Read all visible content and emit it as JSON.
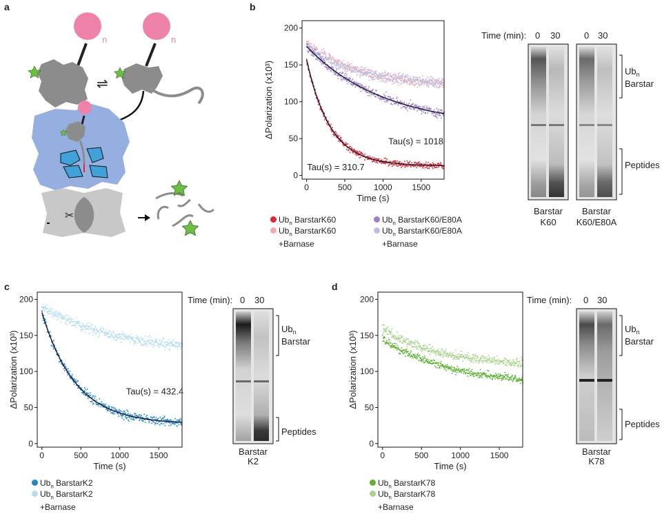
{
  "panel_labels": {
    "a": "a",
    "b": "b",
    "c": "c",
    "d": "d"
  },
  "schematic": {
    "subscript_n_1": "n",
    "subscript_n_2": "n",
    "equilibrium_symbol": "⇌",
    "scissors_symbol": "✂",
    "colors": {
      "ubiquitin": "#EE82A8",
      "substrate": "#8C8C8C",
      "regulatory": "#94AFE0",
      "core": "#C8C8C8",
      "star": "#6DBE45"
    }
  },
  "gel_common": {
    "time_label": "Time (min):",
    "lane_0": "0",
    "lane_30": "30",
    "ub_label": "Ub",
    "ub_sub": "n",
    "barstar_label": "Barstar",
    "peptides_label": "Peptides"
  },
  "gels": {
    "k60": {
      "line1": "Barstar",
      "line2": "K60"
    },
    "k60e80a": {
      "line1": "Barstar",
      "line2": "K60/E80A"
    },
    "k2": {
      "line1": "Barstar",
      "line2": "K2"
    },
    "k78": {
      "line1": "Barstar",
      "line2": "K78"
    }
  },
  "chart_data": [
    {
      "panel": "b",
      "type": "scatter",
      "xlabel": "Time (s)",
      "ylabel": "ΔPolarization (x10³)",
      "xlim": [
        -60,
        1800
      ],
      "ylim": [
        -5,
        210
      ],
      "xticks": [
        0,
        500,
        1000,
        1500
      ],
      "yticks": [
        0,
        50,
        100,
        150,
        200
      ],
      "series": [
        {
          "name": "Ubn BarstarK60 +Barnase",
          "legend_main": "Ub",
          "legend_sub": "n",
          "legend_rest": " BarstarK60",
          "legend_line2": "+Barnase",
          "color": "#F4A9AE",
          "start": 180,
          "end": 120,
          "tau": 700,
          "noise": 9
        },
        {
          "name": "Ubn BarstarK60/E80A +Barnase",
          "legend_main": "Ub",
          "legend_sub": "n",
          "legend_rest": " BarstarK60/E80A",
          "legend_line2": "+Barnase",
          "color": "#B7C2E8",
          "start": 176,
          "end": 122,
          "tau": 650,
          "noise": 9
        },
        {
          "name": "Ubn BarstarK60/E80A",
          "legend_main": "Ub",
          "legend_sub": "n",
          "legend_rest": " BarstarK60/E80A",
          "legend_line2": "",
          "color": "#9B80C7",
          "start": 175,
          "end": 65,
          "tau": 1018,
          "noise": 8,
          "fit": true
        },
        {
          "name": "Ubn BarstarK60",
          "legend_main": "Ub",
          "legend_sub": "n",
          "legend_rest": " BarstarK60",
          "legend_line2": "",
          "color": "#E3262F",
          "start": 157,
          "end": 13,
          "tau": 310.7,
          "noise": 6,
          "fit": true
        }
      ],
      "annotations": [
        {
          "text": "Tau(s) = 1018",
          "x": 1070,
          "y": 42
        },
        {
          "text": "Tau(s) = 310.7",
          "x": 5,
          "y": 7
        }
      ],
      "legend_order": [
        3,
        0,
        2,
        1
      ]
    },
    {
      "panel": "c",
      "type": "scatter",
      "xlabel": "Time (s)",
      "ylabel": "ΔPolarization (x10³)",
      "xlim": [
        -60,
        1800
      ],
      "ylim": [
        -5,
        210
      ],
      "xticks": [
        0,
        500,
        1000,
        1500
      ],
      "yticks": [
        0,
        50,
        100,
        150,
        200
      ],
      "series": [
        {
          "name": "Ubn BarstarK2 +Barnase",
          "legend_main": "Ub",
          "legend_sub": "n",
          "legend_rest": " BarstarK2",
          "legend_line2": "+Barnase",
          "color": "#B3DCF0",
          "start": 190,
          "end": 128,
          "tau": 900,
          "noise": 9
        },
        {
          "name": "Ubn BarstarK2",
          "legend_main": "Ub",
          "legend_sub": "n",
          "legend_rest": " BarstarK2",
          "legend_line2": "",
          "color": "#1E87C8",
          "start": 182,
          "end": 27,
          "tau": 432.4,
          "noise": 8,
          "fit": true
        }
      ],
      "annotations": [
        {
          "text": "Tau(s) = 432.4",
          "x": 1080,
          "y": 68
        }
      ],
      "legend_order": [
        1,
        0
      ]
    },
    {
      "panel": "d",
      "type": "scatter",
      "xlabel": "Time (s)",
      "ylabel": "ΔPolarization (x10³)",
      "xlim": [
        -60,
        1800
      ],
      "ylim": [
        -5,
        210
      ],
      "xticks": [
        0,
        500,
        1000,
        1500
      ],
      "yticks": [
        0,
        50,
        100,
        150,
        200
      ],
      "series": [
        {
          "name": "Ubn BarstarK78 +Barnase",
          "legend_main": "Ub",
          "legend_sub": "n",
          "legend_rest": " BarstarK78",
          "legend_line2": "+Barnase",
          "color": "#A6D488",
          "start": 160,
          "end": 108,
          "tau": 700,
          "noise": 8
        },
        {
          "name": "Ubn BarstarK78",
          "legend_main": "Ub",
          "legend_sub": "n",
          "legend_rest": " BarstarK78",
          "legend_line2": "",
          "color": "#5DB333",
          "start": 145,
          "end": 80,
          "tau": 900,
          "noise": 7
        }
      ],
      "annotations": [],
      "legend_order": [
        1,
        0
      ]
    }
  ]
}
